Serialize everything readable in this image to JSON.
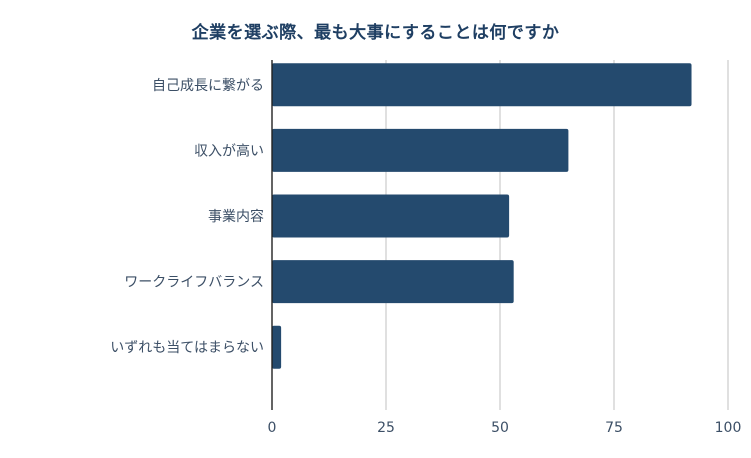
{
  "chart_data": {
    "type": "bar",
    "orientation": "horizontal",
    "title": "企業を選ぶ際、最も大事にすることは何ですか",
    "categories": [
      "自己成長に繋がる",
      "収入が高い",
      "事業内容",
      "ワークライフバランス",
      "いずれも当てはまらない"
    ],
    "values": [
      92,
      65,
      52,
      53,
      2
    ],
    "xlim": [
      0,
      100
    ],
    "x_ticks": [
      0,
      25,
      50,
      75,
      100
    ],
    "x_tick_labels": [
      "0",
      "25",
      "50",
      "75",
      "100"
    ],
    "xlabel": "",
    "ylabel": "",
    "grid": "vertical",
    "legend": "none",
    "colors": {
      "bar": "#244a6e",
      "grid": "#cccccc",
      "axis": "#222222",
      "text": "#3c4f66",
      "title": "#1f3f63"
    }
  }
}
